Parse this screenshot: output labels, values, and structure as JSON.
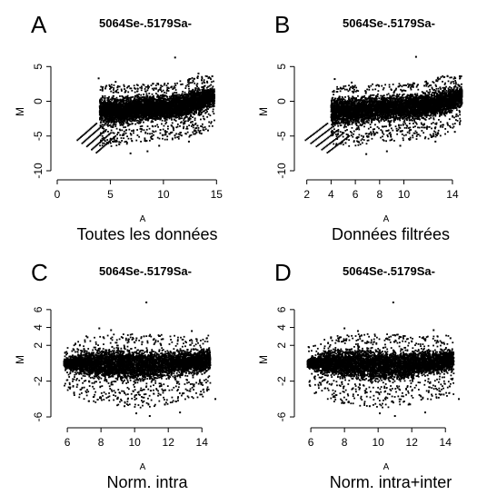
{
  "chart_data": [
    {
      "type": "scatter",
      "panel_letter": "A",
      "title": "5064Se-.5179Sa-",
      "xlabel": "A",
      "ylabel": "M",
      "caption": "Toutes les données",
      "xlim": [
        0,
        16
      ],
      "ylim": [
        -10,
        7
      ],
      "xticks": [
        0,
        5,
        10,
        15
      ],
      "yticks": [
        -10,
        -5,
        0,
        5
      ],
      "cloud": [
        {
          "x": 4.0,
          "ylo": -4.2,
          "yhi": 1.2
        },
        {
          "x": 6.0,
          "ylo": -4.0,
          "yhi": 1.2
        },
        {
          "x": 8.0,
          "ylo": -3.4,
          "yhi": 1.3
        },
        {
          "x": 10.0,
          "ylo": -3.2,
          "yhi": 1.4
        },
        {
          "x": 12.0,
          "ylo": -3.0,
          "yhi": 1.8
        },
        {
          "x": 13.5,
          "ylo": -2.4,
          "yhi": 2.6
        },
        {
          "x": 14.8,
          "ylo": -1.0,
          "yhi": 2.4
        }
      ],
      "stripes": true,
      "outliers": [
        [
          11.1,
          6.3
        ],
        [
          3.9,
          3.3
        ],
        [
          13.3,
          4.0
        ],
        [
          8.5,
          -7.2
        ],
        [
          6.9,
          -7.5
        ],
        [
          4.8,
          -6.0
        ],
        [
          12.4,
          -5.8
        ],
        [
          14.2,
          -4.2
        ],
        [
          9.6,
          -6.4
        ],
        [
          5.5,
          2.8
        ],
        [
          14.6,
          3.6
        ]
      ]
    },
    {
      "type": "scatter",
      "panel_letter": "B",
      "title": "5064Se-.5179Sa-",
      "xlabel": "A",
      "ylabel": "M",
      "caption": "Données filtrées",
      "xlim": [
        1.5,
        15.5
      ],
      "ylim": [
        -10,
        7
      ],
      "xticks": [
        2,
        4,
        6,
        8,
        10,
        14
      ],
      "yticks": [
        -10,
        -5,
        0,
        5
      ],
      "cloud": [
        {
          "x": 4.0,
          "ylo": -4.2,
          "yhi": 1.2
        },
        {
          "x": 6.0,
          "ylo": -4.0,
          "yhi": 1.2
        },
        {
          "x": 8.0,
          "ylo": -3.4,
          "yhi": 1.3
        },
        {
          "x": 10.0,
          "ylo": -3.2,
          "yhi": 1.4
        },
        {
          "x": 12.0,
          "ylo": -3.0,
          "yhi": 1.8
        },
        {
          "x": 13.5,
          "ylo": -2.4,
          "yhi": 2.6
        },
        {
          "x": 14.8,
          "ylo": -1.0,
          "yhi": 2.4
        }
      ],
      "stripes": true,
      "outliers": [
        [
          11.0,
          6.4
        ],
        [
          4.3,
          3.2
        ],
        [
          13.6,
          3.6
        ],
        [
          8.6,
          -7.2
        ],
        [
          6.9,
          -7.6
        ],
        [
          5.2,
          -6.0
        ],
        [
          12.6,
          -5.8
        ],
        [
          14.2,
          -4.4
        ],
        [
          9.7,
          -6.4
        ],
        [
          5.7,
          2.7
        ],
        [
          14.6,
          3.6
        ]
      ]
    },
    {
      "type": "scatter",
      "panel_letter": "C",
      "title": "5064Se-.5179Sa-",
      "xlabel": "A",
      "ylabel": "M",
      "caption": "Norm. intra",
      "xlim": [
        5.4,
        15.5
      ],
      "ylim": [
        -6.2,
        7
      ],
      "xticks": [
        6,
        8,
        10,
        12,
        14
      ],
      "yticks": [
        -6,
        -2,
        2,
        4,
        6
      ],
      "cloud": [
        {
          "x": 5.8,
          "ylo": -0.6,
          "yhi": 0.6
        },
        {
          "x": 7.0,
          "ylo": -1.8,
          "yhi": 1.8
        },
        {
          "x": 8.5,
          "ylo": -2.3,
          "yhi": 2.1
        },
        {
          "x": 10.0,
          "ylo": -2.6,
          "yhi": 2.1
        },
        {
          "x": 11.5,
          "ylo": -2.4,
          "yhi": 2.0
        },
        {
          "x": 13.0,
          "ylo": -1.7,
          "yhi": 1.8
        },
        {
          "x": 14.5,
          "ylo": -1.2,
          "yhi": 2.0
        }
      ],
      "stripes": false,
      "outliers": [
        [
          10.7,
          6.8
        ],
        [
          7.9,
          3.9
        ],
        [
          8.6,
          3.7
        ],
        [
          13.4,
          3.6
        ],
        [
          14.3,
          2.8
        ],
        [
          10.1,
          -5.6
        ],
        [
          10.9,
          -5.9
        ],
        [
          12.7,
          -5.5
        ],
        [
          9.4,
          -4.8
        ],
        [
          11.8,
          -4.6
        ],
        [
          13.9,
          -3.5
        ],
        [
          14.8,
          -4.0
        ],
        [
          7.2,
          2.9
        ],
        [
          6.6,
          -2.4
        ]
      ]
    },
    {
      "type": "scatter",
      "panel_letter": "D",
      "title": "5064Se-.5179Sa-",
      "xlabel": "A",
      "ylabel": "M",
      "caption": "Norm. intra+inter",
      "xlim": [
        5.4,
        15.5
      ],
      "ylim": [
        -6.2,
        7
      ],
      "xticks": [
        6,
        8,
        10,
        12,
        14
      ],
      "yticks": [
        -6,
        -2,
        2,
        4,
        6
      ],
      "cloud": [
        {
          "x": 5.8,
          "ylo": -0.6,
          "yhi": 0.6
        },
        {
          "x": 7.0,
          "ylo": -1.8,
          "yhi": 1.8
        },
        {
          "x": 8.5,
          "ylo": -2.3,
          "yhi": 2.1
        },
        {
          "x": 10.0,
          "ylo": -2.6,
          "yhi": 2.1
        },
        {
          "x": 11.5,
          "ylo": -2.4,
          "yhi": 2.0
        },
        {
          "x": 13.0,
          "ylo": -1.7,
          "yhi": 1.8
        },
        {
          "x": 14.5,
          "ylo": -1.2,
          "yhi": 2.0
        }
      ],
      "stripes": false,
      "outliers": [
        [
          10.9,
          6.8
        ],
        [
          8.0,
          3.9
        ],
        [
          8.8,
          3.6
        ],
        [
          13.3,
          3.7
        ],
        [
          14.3,
          2.8
        ],
        [
          10.1,
          -5.6
        ],
        [
          11.0,
          -5.9
        ],
        [
          12.8,
          -5.5
        ],
        [
          9.5,
          -4.8
        ],
        [
          11.9,
          -4.6
        ],
        [
          13.9,
          -3.5
        ],
        [
          14.8,
          -4.0
        ],
        [
          7.2,
          2.9
        ],
        [
          6.6,
          -2.4
        ]
      ]
    }
  ]
}
